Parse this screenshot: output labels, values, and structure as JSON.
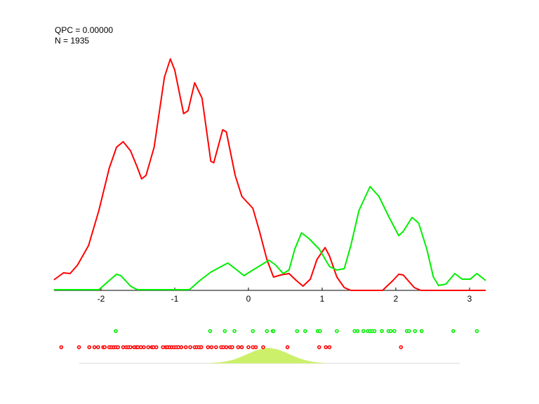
{
  "stats": {
    "qpc": "QPC = 0.00000",
    "n": "N = 1935"
  },
  "colors": {
    "red": "#ff0000",
    "green": "#00ee00",
    "area": "#ccf06a",
    "baseline": "#d8d8d8",
    "axis": "#000000"
  },
  "chart_data": {
    "type": "line",
    "xlim": [
      -2.64,
      3.22
    ],
    "xticks": [
      -2,
      -1,
      0,
      1,
      2,
      3
    ],
    "tick_labels": [
      "-2",
      "-1",
      "0",
      "1",
      "2",
      "3"
    ],
    "grid": false,
    "series": [
      {
        "color": "red",
        "x": [
          -2.64,
          -2.51,
          -2.42,
          -2.32,
          -2.17,
          -2.03,
          -1.89,
          -1.79,
          -1.7,
          -1.6,
          -1.51,
          -1.45,
          -1.39,
          -1.28,
          -1.14,
          -1.06,
          -1.0,
          -0.88,
          -0.82,
          -0.73,
          -0.63,
          -0.51,
          -0.47,
          -0.35,
          -0.3,
          -0.18,
          -0.09,
          0.06,
          0.15,
          0.25,
          0.34,
          0.44,
          0.55,
          0.65,
          0.74,
          0.84,
          0.93,
          1.04,
          1.1,
          1.2,
          1.3,
          1.39,
          1.82,
          1.96,
          2.04,
          2.1,
          2.25,
          2.34,
          3.22
        ],
        "y": [
          0.15,
          0.25,
          0.24,
          0.36,
          0.64,
          1.14,
          1.74,
          2.04,
          2.12,
          1.99,
          1.76,
          1.59,
          1.64,
          2.04,
          3.04,
          3.3,
          3.14,
          2.52,
          2.56,
          2.96,
          2.74,
          1.84,
          1.82,
          2.29,
          2.26,
          1.64,
          1.34,
          1.17,
          0.84,
          0.44,
          0.19,
          0.22,
          0.24,
          0.14,
          0.06,
          0.16,
          0.44,
          0.61,
          0.49,
          0.19,
          0.04,
          0,
          0,
          0.14,
          0.23,
          0.22,
          0.04,
          0,
          0
        ]
      },
      {
        "color": "green",
        "x": [
          -2.64,
          -2.03,
          -1.89,
          -1.79,
          -1.73,
          -1.6,
          -1.51,
          -0.8,
          -0.66,
          -0.51,
          -0.37,
          -0.28,
          -0.18,
          -0.06,
          0.06,
          0.17,
          0.28,
          0.37,
          0.47,
          0.55,
          0.63,
          0.72,
          0.82,
          0.96,
          1.1,
          1.2,
          1.3,
          1.39,
          1.5,
          1.65,
          1.77,
          1.91,
          2.04,
          2.1,
          2.22,
          2.31,
          2.42,
          2.51,
          2.58,
          2.68,
          2.8,
          2.9,
          3.01,
          3.1,
          3.22
        ],
        "y": [
          0.01,
          0.01,
          0.14,
          0.23,
          0.21,
          0.06,
          0.01,
          0.01,
          0.14,
          0.26,
          0.34,
          0.39,
          0.31,
          0.21,
          0.29,
          0.36,
          0.43,
          0.36,
          0.24,
          0.29,
          0.59,
          0.82,
          0.74,
          0.59,
          0.34,
          0.29,
          0.31,
          0.64,
          1.14,
          1.48,
          1.34,
          1.04,
          0.78,
          0.84,
          1.04,
          0.96,
          0.59,
          0.19,
          0.07,
          0.09,
          0.24,
          0.16,
          0.16,
          0.24,
          0.14
        ]
      }
    ],
    "rug": {
      "green": [
        -1.8,
        -0.52,
        -0.32,
        -0.19,
        0.06,
        0.25,
        0.33,
        0.34,
        0.66,
        0.77,
        0.94,
        0.97,
        1.2,
        1.44,
        1.48,
        1.56,
        1.62,
        1.65,
        1.68,
        1.71,
        1.81,
        1.9,
        1.93,
        1.98,
        2.15,
        2.18,
        2.26,
        2.35,
        2.78,
        3.1
      ],
      "red": [
        -2.54,
        -2.3,
        -2.16,
        -2.09,
        -2.04,
        -1.97,
        -1.95,
        -1.89,
        -1.86,
        -1.83,
        -1.8,
        -1.77,
        -1.7,
        -1.66,
        -1.63,
        -1.6,
        -1.55,
        -1.52,
        -1.5,
        -1.46,
        -1.42,
        -1.36,
        -1.31,
        -1.29,
        -1.25,
        -1.16,
        -1.12,
        -1.1,
        -1.07,
        -1.04,
        -1.01,
        -0.98,
        -0.95,
        -0.91,
        -0.85,
        -0.79,
        -0.73,
        -0.7,
        -0.67,
        -0.64,
        -0.55,
        -0.5,
        -0.44,
        -0.37,
        -0.34,
        -0.3,
        -0.25,
        -0.22,
        -0.14,
        -0.09,
        0.0,
        0.06,
        0.1,
        0.2,
        0.53,
        0.96,
        1.05,
        1.1,
        2.07
      ]
    },
    "area": {
      "baseline_range": [
        -2.3,
        2.87
      ],
      "x": [
        -0.5,
        -0.4,
        -0.3,
        -0.2,
        -0.1,
        0.0,
        0.1,
        0.2,
        0.27,
        0.3,
        0.4,
        0.5,
        0.6,
        0.7,
        0.8,
        0.9,
        1.0,
        1.05
      ],
      "y": [
        0.03,
        0.06,
        0.13,
        0.24,
        0.42,
        0.63,
        0.83,
        0.97,
        1.0,
        0.99,
        0.9,
        0.71,
        0.5,
        0.31,
        0.17,
        0.08,
        0.03,
        0
      ]
    }
  }
}
